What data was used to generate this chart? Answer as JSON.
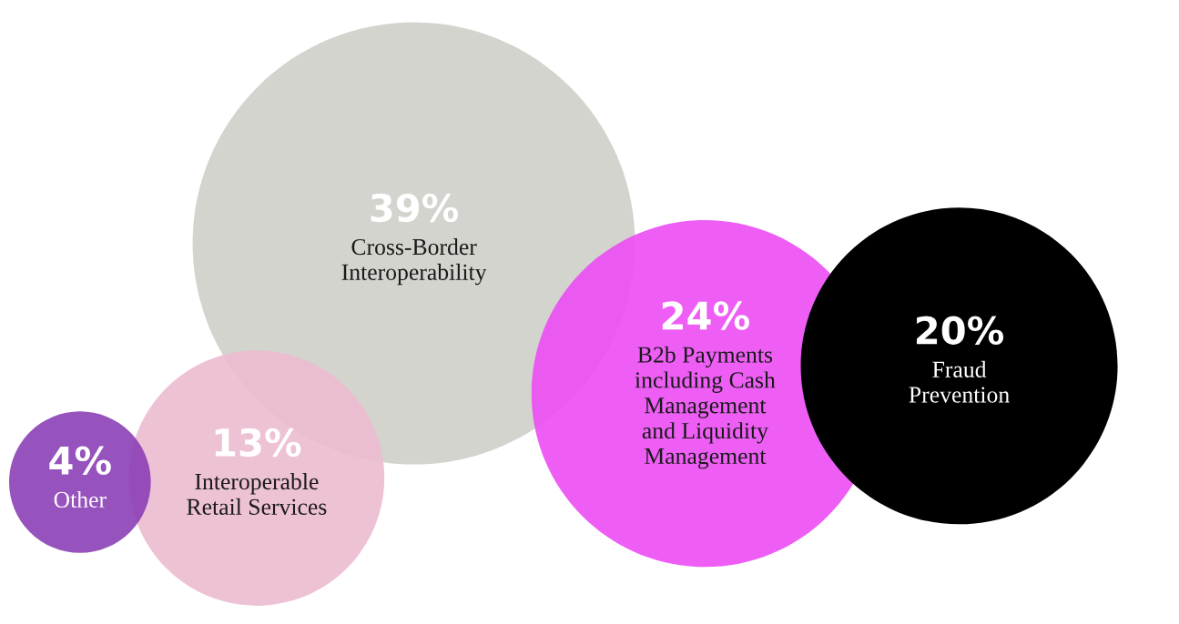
{
  "chart_data": {
    "type": "other",
    "categories": [
      "Other",
      "Interoperable\nRetail Services",
      "Cross-Border\nInteroperability",
      "B2b Payments\nincluding Cash\nManagement\nand Liquidity\nManagement",
      "Fraud\nPrevention"
    ],
    "values": [
      4,
      13,
      39,
      24,
      20
    ],
    "value_labels": [
      "4%",
      "13%",
      "39%",
      "24%",
      "20%"
    ],
    "colors": [
      "#8b3fb6",
      "#ecbbd0",
      "#cecfc9",
      "#ec4cf4",
      "#000000"
    ]
  }
}
